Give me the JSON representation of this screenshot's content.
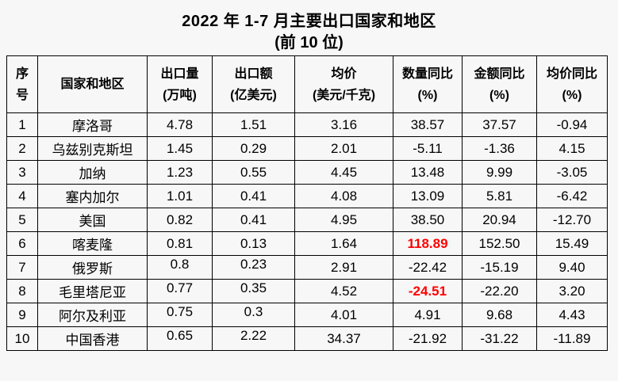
{
  "page": {
    "background": "#f7f7f7"
  },
  "title": {
    "line1": "2022 年 1-7 月主要出口国家和地区",
    "line2": "(前 10 位)"
  },
  "colors": {
    "highlight_red": "#ff0000",
    "text": "#000000",
    "border": "#000000"
  },
  "chart_data": {
    "type": "table",
    "title": "2022 年 1-7 月主要出口国家和地区 (前 10 位)",
    "columns": [
      {
        "key": "rank",
        "label": "序号",
        "lines": [
          "序",
          "号"
        ]
      },
      {
        "key": "country",
        "label": "国家和地区",
        "lines": [
          "国家和地区"
        ]
      },
      {
        "key": "export_qty",
        "label": "出口量(万吨)",
        "lines": [
          "出口量",
          "(万吨)"
        ]
      },
      {
        "key": "export_value",
        "label": "出口额(亿美元)",
        "lines": [
          "出口额",
          "(亿美元)"
        ]
      },
      {
        "key": "avg_price",
        "label": "均价(美元/千克)",
        "lines": [
          "均价",
          "(美元/千克)"
        ]
      },
      {
        "key": "qty_yoy",
        "label": "数量同比(%)",
        "lines": [
          "数量同比",
          "(%)"
        ]
      },
      {
        "key": "value_yoy",
        "label": "金额同比(%)",
        "lines": [
          "金额同比",
          "(%)"
        ]
      },
      {
        "key": "price_yoy",
        "label": "均价同比(%)",
        "lines": [
          "均价同比",
          "(%)"
        ]
      }
    ],
    "rows": [
      {
        "rank": "1",
        "country": "摩洛哥",
        "export_qty": "4.78",
        "export_value": "1.51",
        "avg_price": "3.16",
        "qty_yoy": "38.57",
        "value_yoy": "37.57",
        "price_yoy": "-0.94"
      },
      {
        "rank": "2",
        "country": "乌兹别克斯坦",
        "export_qty": "1.45",
        "export_value": "0.29",
        "avg_price": "2.01",
        "qty_yoy": "-5.11",
        "value_yoy": "-1.36",
        "price_yoy": "4.15"
      },
      {
        "rank": "3",
        "country": "加纳",
        "export_qty": "1.23",
        "export_value": "0.55",
        "avg_price": "4.45",
        "qty_yoy": "13.48",
        "value_yoy": "9.99",
        "price_yoy": "-3.05"
      },
      {
        "rank": "4",
        "country": "塞内加尔",
        "export_qty": "1.01",
        "export_value": "0.41",
        "avg_price": "4.08",
        "qty_yoy": "13.09",
        "value_yoy": "5.81",
        "price_yoy": "-6.42"
      },
      {
        "rank": "5",
        "country": "美国",
        "export_qty": "0.82",
        "export_value": "0.41",
        "avg_price": "4.95",
        "qty_yoy": "38.50",
        "value_yoy": "20.94",
        "price_yoy": "-12.70"
      },
      {
        "rank": "6",
        "country": "喀麦隆",
        "export_qty": "0.81",
        "export_value": "0.13",
        "avg_price": "1.64",
        "qty_yoy": "118.89",
        "value_yoy": "152.50",
        "price_yoy": "15.49",
        "qty_yoy_red": true
      },
      {
        "rank": "7",
        "country": "俄罗斯",
        "export_qty": "0.8",
        "export_value": "0.23",
        "avg_price": "2.91",
        "qty_yoy": "-22.42",
        "value_yoy": "-15.19",
        "price_yoy": "9.40",
        "raised": true
      },
      {
        "rank": "8",
        "country": "毛里塔尼亚",
        "export_qty": "0.77",
        "export_value": "0.35",
        "avg_price": "4.52",
        "qty_yoy": "-24.51",
        "value_yoy": "-22.20",
        "price_yoy": "3.20",
        "qty_yoy_red": true,
        "raised": true
      },
      {
        "rank": "9",
        "country": "阿尔及利亚",
        "export_qty": "0.75",
        "export_value": "0.3",
        "avg_price": "4.01",
        "qty_yoy": "4.91",
        "value_yoy": "9.68",
        "price_yoy": "4.43",
        "raised": true
      },
      {
        "rank": "10",
        "country": "中国香港",
        "export_qty": "0.65",
        "export_value": "2.22",
        "avg_price": "34.37",
        "qty_yoy": "-21.92",
        "value_yoy": "-31.22",
        "price_yoy": "-11.89",
        "raised": true
      }
    ]
  }
}
